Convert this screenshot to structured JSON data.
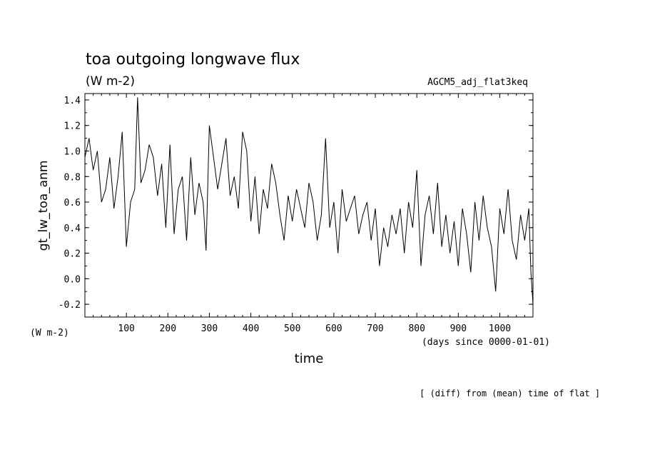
{
  "chart_data": {
    "type": "line",
    "title": "toa outgoing longwave flux",
    "subtitle": "(W m-2)",
    "run_label": "AGCM5_adj_flat3keq",
    "ylabel": "gt_lw_toa_anm",
    "yunit": "(W m-2)",
    "xlabel": "time",
    "xunit": "(days since 0000-01-01)",
    "footnote": "[ (diff) from (mean) time of flat ]",
    "xlim": [
      0,
      1080
    ],
    "ylim": [
      -0.3,
      1.45
    ],
    "xticks": [
      100,
      200,
      300,
      400,
      500,
      600,
      700,
      800,
      900,
      1000
    ],
    "yticks": [
      -0.2,
      0.0,
      0.2,
      0.4,
      0.6,
      0.8,
      1.0,
      1.2,
      1.4
    ],
    "ytick_labels": [
      "-0.2",
      "0.0",
      "0.2",
      "0.4",
      "0.6",
      "0.8",
      "1.0",
      "1.2",
      "1.4"
    ],
    "line_color": "#000000",
    "grid": false,
    "series": [
      {
        "x": [
          0,
          10,
          20,
          30,
          40,
          50,
          60,
          70,
          80,
          90,
          100,
          110,
          120,
          127,
          135,
          145,
          155,
          165,
          175,
          185,
          195,
          205,
          215,
          225,
          235,
          245,
          255,
          265,
          275,
          285,
          292,
          300,
          310,
          320,
          330,
          340,
          350,
          360,
          370,
          380,
          390,
          400,
          410,
          420,
          430,
          440,
          450,
          460,
          470,
          480,
          490,
          500,
          510,
          520,
          530,
          540,
          550,
          560,
          570,
          580,
          590,
          600,
          610,
          620,
          630,
          640,
          650,
          660,
          670,
          680,
          690,
          700,
          710,
          720,
          730,
          740,
          750,
          760,
          770,
          780,
          790,
          800,
          810,
          820,
          830,
          840,
          850,
          860,
          870,
          880,
          890,
          900,
          910,
          920,
          930,
          940,
          950,
          960,
          970,
          980,
          990,
          1000,
          1010,
          1020,
          1030,
          1040,
          1050,
          1060,
          1070,
          1075,
          1080
        ],
        "y": [
          0.95,
          1.1,
          0.85,
          1.0,
          0.6,
          0.7,
          0.95,
          0.55,
          0.8,
          1.15,
          0.25,
          0.6,
          0.7,
          1.42,
          0.75,
          0.85,
          1.05,
          0.95,
          0.65,
          0.9,
          0.4,
          1.05,
          0.35,
          0.7,
          0.8,
          0.3,
          0.95,
          0.5,
          0.75,
          0.6,
          0.22,
          1.2,
          0.95,
          0.7,
          0.9,
          1.1,
          0.65,
          0.8,
          0.55,
          1.15,
          1.0,
          0.45,
          0.8,
          0.35,
          0.7,
          0.55,
          0.9,
          0.75,
          0.5,
          0.3,
          0.65,
          0.45,
          0.7,
          0.55,
          0.4,
          0.75,
          0.6,
          0.3,
          0.5,
          1.1,
          0.4,
          0.6,
          0.2,
          0.7,
          0.45,
          0.55,
          0.65,
          0.35,
          0.5,
          0.6,
          0.3,
          0.55,
          0.1,
          0.4,
          0.25,
          0.5,
          0.35,
          0.55,
          0.2,
          0.6,
          0.4,
          0.85,
          0.1,
          0.5,
          0.65,
          0.35,
          0.75,
          0.25,
          0.5,
          0.2,
          0.45,
          0.1,
          0.55,
          0.35,
          0.05,
          0.6,
          0.3,
          0.65,
          0.4,
          0.25,
          -0.1,
          0.55,
          0.35,
          0.7,
          0.3,
          0.15,
          0.5,
          0.3,
          0.55,
          0.05,
          -0.2
        ]
      }
    ]
  }
}
